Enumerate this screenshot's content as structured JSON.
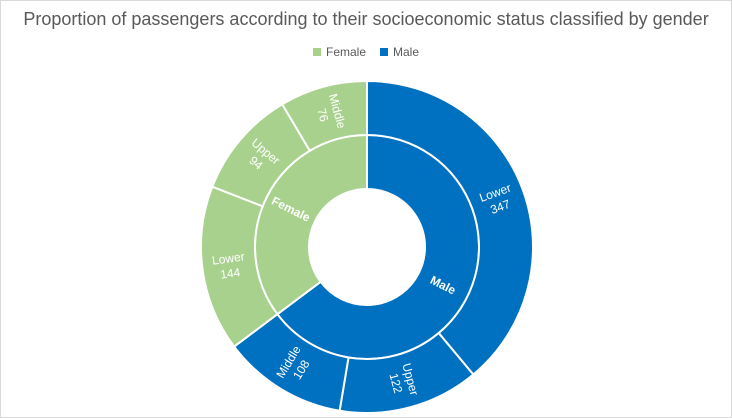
{
  "chart_data": {
    "type": "sunburst",
    "title": "Proportion of passengers according to their socioeconomic status classified by gender",
    "legend": {
      "position": "top",
      "entries": [
        {
          "name": "Female",
          "color": "#a9d18e"
        },
        {
          "name": "Male",
          "color": "#0070c0"
        }
      ]
    },
    "inner_ring": [
      {
        "name": "Male",
        "value": 577,
        "color": "#0070c0"
      },
      {
        "name": "Female",
        "value": 314,
        "color": "#a9d18e"
      }
    ],
    "outer_ring": [
      {
        "parent": "Male",
        "name": "Lower",
        "value": 347,
        "color": "#0070c0"
      },
      {
        "parent": "Male",
        "name": "Upper",
        "value": 122,
        "color": "#0070c0"
      },
      {
        "parent": "Male",
        "name": "Middle",
        "value": 108,
        "color": "#0070c0"
      },
      {
        "parent": "Female",
        "name": "Lower",
        "value": 144,
        "color": "#a9d18e"
      },
      {
        "parent": "Female",
        "name": "Upper",
        "value": 94,
        "color": "#a9d18e"
      },
      {
        "parent": "Female",
        "name": "Middle",
        "value": 76,
        "color": "#a9d18e"
      }
    ]
  }
}
